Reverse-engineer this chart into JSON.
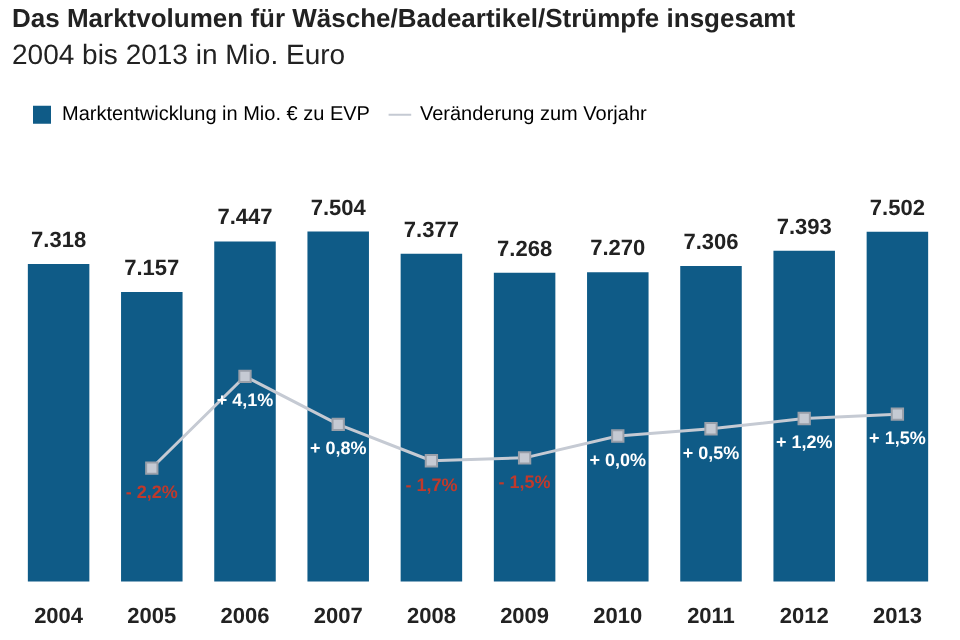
{
  "chart_data": {
    "type": "bar",
    "title": "Das Marktvolumen für Wäsche/Badeartikel/Strümpfe insgesamt",
    "subtitle": "2004 bis 2013 in Mio. Euro",
    "categories": [
      "2004",
      "2005",
      "2006",
      "2007",
      "2008",
      "2009",
      "2010",
      "2011",
      "2012",
      "2013"
    ],
    "series": [
      {
        "name": "Marktentwicklung in Mio. € zu EVP",
        "color": "#0f5b87",
        "values": [
          7318,
          7157,
          7447,
          7504,
          7377,
          7268,
          7270,
          7306,
          7393,
          7502
        ],
        "value_labels": [
          "7.318",
          "7.157",
          "7.447",
          "7.504",
          "7.377",
          "7.268",
          "7.270",
          "7.306",
          "7.393",
          "7.502"
        ]
      },
      {
        "name": "Veränderung zum Vorjahr",
        "type": "line",
        "axis": "y2",
        "color": "#c5cad3",
        "marker": "square",
        "values": [
          null,
          -2.2,
          4.1,
          0.8,
          -1.7,
          -1.5,
          0.0,
          0.5,
          1.2,
          1.5
        ],
        "value_labels": [
          null,
          "- 2,2%",
          "+ 4,1%",
          "+ 0,8%",
          "- 1,7%",
          "- 1,5%",
          "+ 0,0%",
          "+ 0,5%",
          "+ 1,2%",
          "+ 1,5%"
        ]
      }
    ],
    "tick_labels": "x",
    "grid": false,
    "legend": "top left"
  }
}
